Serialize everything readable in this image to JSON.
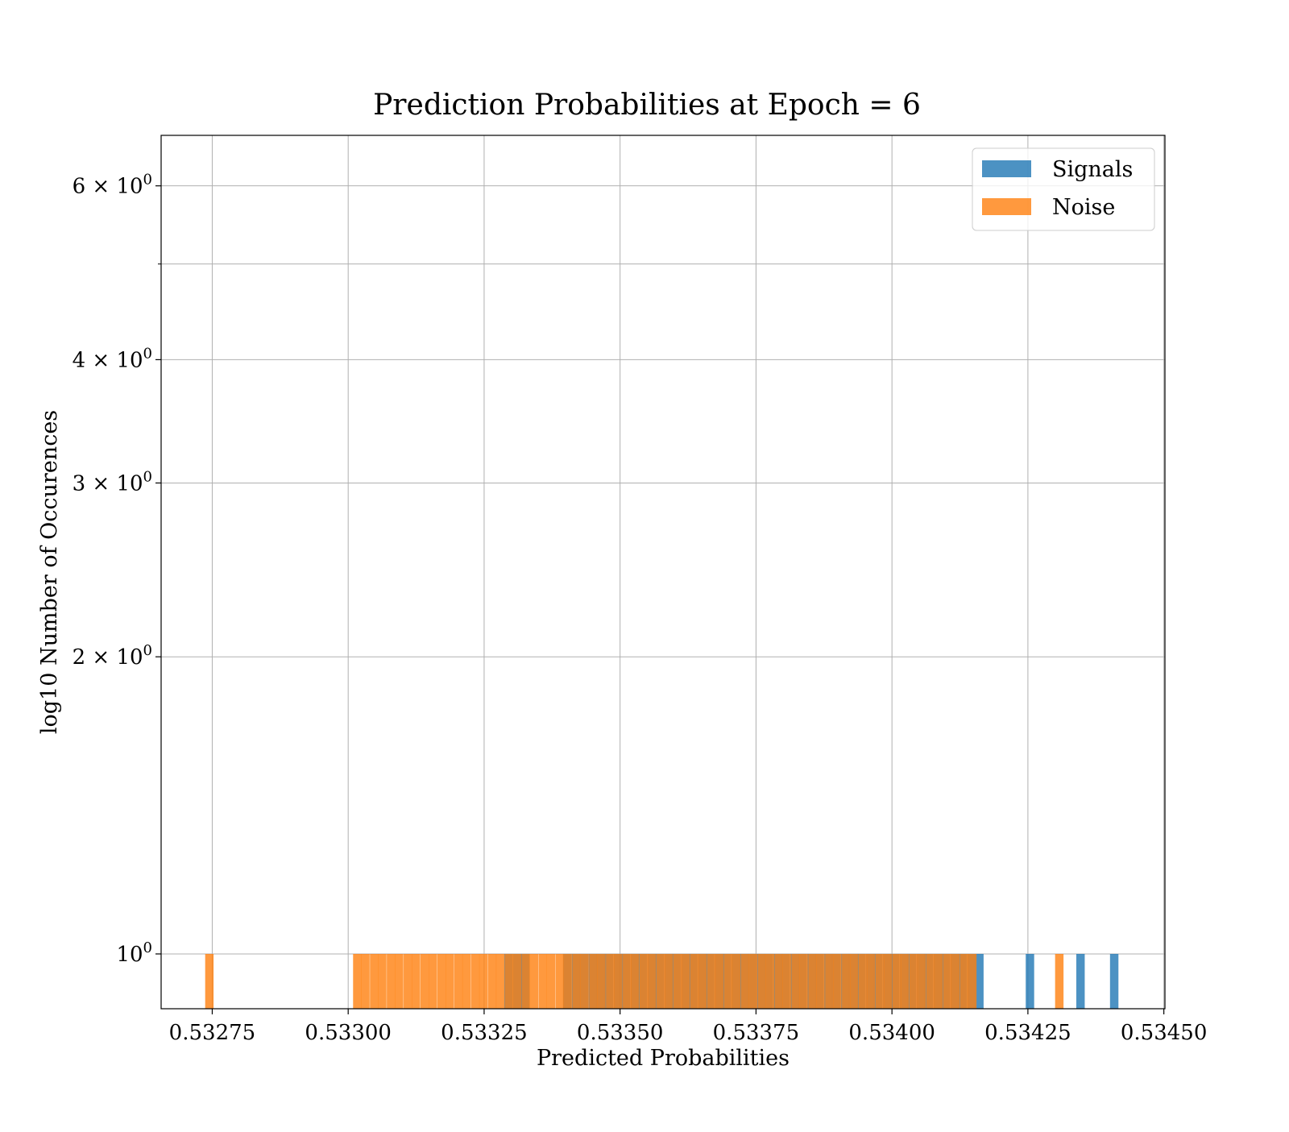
{
  "chart_data": {
    "type": "bar",
    "title": "Prediction Probabilities at Epoch = 6",
    "xlabel": "Predicted Probabilities",
    "ylabel": "log10 Number of Occurences",
    "x_scale": "linear",
    "y_scale": "log",
    "xlim": [
      0.532656,
      0.534502
    ],
    "ylim": [
      0.88,
      6.75
    ],
    "bin_width": 1.55e-05,
    "grid": true,
    "legend_position": "top-right",
    "x_ticks": [
      {
        "value": 0.53275,
        "label": "0.53275"
      },
      {
        "value": 0.533,
        "label": "0.53300"
      },
      {
        "value": 0.53325,
        "label": "0.53325"
      },
      {
        "value": 0.5335,
        "label": "0.53350"
      },
      {
        "value": 0.53375,
        "label": "0.53375"
      },
      {
        "value": 0.534,
        "label": "0.53400"
      },
      {
        "value": 0.53425,
        "label": "0.53425"
      },
      {
        "value": 0.5345,
        "label": "0.53450"
      }
    ],
    "y_ticks": [
      {
        "value": 1,
        "label": "10",
        "sup": "0"
      },
      {
        "value": 2,
        "label": "2 × 10",
        "sup": "0"
      },
      {
        "value": 3,
        "label": "3 × 10",
        "sup": "0"
      },
      {
        "value": 4,
        "label": "4 × 10",
        "sup": "0"
      },
      {
        "value": 6,
        "label": "6 × 10",
        "sup": "0"
      }
    ],
    "y_minor_ticks": [
      5
    ],
    "series": [
      {
        "name": "Signals",
        "color": "#1f77b4",
        "opacity": 0.8,
        "bins": [
          [
            0.533287,
            1
          ],
          [
            0.533303,
            1
          ],
          [
            0.533318,
            1
          ],
          [
            0.533395,
            1
          ],
          [
            0.533411,
            1
          ],
          [
            0.533426,
            1
          ],
          [
            0.533442,
            1
          ],
          [
            0.533457,
            1
          ],
          [
            0.533472,
            1
          ],
          [
            0.533488,
            1
          ],
          [
            0.533503,
            1
          ],
          [
            0.533519,
            1
          ],
          [
            0.533534,
            1
          ],
          [
            0.53355,
            1
          ],
          [
            0.533565,
            1
          ],
          [
            0.533581,
            1
          ],
          [
            0.533596,
            1
          ],
          [
            0.533612,
            1
          ],
          [
            0.533627,
            1
          ],
          [
            0.533643,
            1
          ],
          [
            0.533658,
            1
          ],
          [
            0.533674,
            1
          ],
          [
            0.533689,
            1
          ],
          [
            0.533705,
            1
          ],
          [
            0.53372,
            1
          ],
          [
            0.533735,
            1
          ],
          [
            0.533751,
            1
          ],
          [
            0.533766,
            1
          ],
          [
            0.533782,
            1
          ],
          [
            0.533797,
            1
          ],
          [
            0.533813,
            1
          ],
          [
            0.533828,
            1
          ],
          [
            0.533844,
            1
          ],
          [
            0.533859,
            1
          ],
          [
            0.533875,
            1
          ],
          [
            0.53389,
            1
          ],
          [
            0.533906,
            1
          ],
          [
            0.533921,
            1
          ],
          [
            0.533936,
            1
          ],
          [
            0.533952,
            1
          ],
          [
            0.533967,
            1
          ],
          [
            0.533983,
            1
          ],
          [
            0.533998,
            1
          ],
          [
            0.534014,
            1
          ],
          [
            0.534029,
            1
          ],
          [
            0.534045,
            1
          ],
          [
            0.53406,
            1
          ],
          [
            0.534076,
            1
          ],
          [
            0.534091,
            1
          ],
          [
            0.534107,
            1
          ],
          [
            0.534122,
            1
          ],
          [
            0.534138,
            1
          ],
          [
            0.534153,
            1
          ],
          [
            0.534246,
            1
          ],
          [
            0.534339,
            1
          ],
          [
            0.534401,
            1
          ]
        ]
      },
      {
        "name": "Noise",
        "color": "#ff7f0e",
        "opacity": 0.8,
        "bins": [
          [
            0.532737,
            1
          ],
          [
            0.533009,
            1
          ],
          [
            0.533024,
            1
          ],
          [
            0.53304,
            1
          ],
          [
            0.533055,
            1
          ],
          [
            0.533071,
            1
          ],
          [
            0.533086,
            1
          ],
          [
            0.533102,
            1
          ],
          [
            0.533117,
            1
          ],
          [
            0.533133,
            1
          ],
          [
            0.533148,
            1
          ],
          [
            0.533164,
            1
          ],
          [
            0.533179,
            1
          ],
          [
            0.533195,
            1
          ],
          [
            0.53321,
            1
          ],
          [
            0.533226,
            1
          ],
          [
            0.533241,
            1
          ],
          [
            0.533257,
            1
          ],
          [
            0.533272,
            1
          ],
          [
            0.533288,
            1
          ],
          [
            0.533303,
            1
          ],
          [
            0.533319,
            1
          ],
          [
            0.533334,
            1
          ],
          [
            0.53335,
            1
          ],
          [
            0.533365,
            1
          ],
          [
            0.533381,
            1
          ],
          [
            0.533396,
            1
          ],
          [
            0.533412,
            1
          ],
          [
            0.533427,
            1
          ],
          [
            0.533443,
            1
          ],
          [
            0.533458,
            1
          ],
          [
            0.533474,
            1
          ],
          [
            0.533489,
            1
          ],
          [
            0.533505,
            1
          ],
          [
            0.53352,
            1
          ],
          [
            0.533536,
            1
          ],
          [
            0.533551,
            1
          ],
          [
            0.533567,
            1
          ],
          [
            0.533582,
            1
          ],
          [
            0.533598,
            1
          ],
          [
            0.533613,
            1
          ],
          [
            0.533629,
            1
          ],
          [
            0.533644,
            1
          ],
          [
            0.53366,
            1
          ],
          [
            0.533675,
            1
          ],
          [
            0.533691,
            1
          ],
          [
            0.533706,
            1
          ],
          [
            0.533722,
            1
          ],
          [
            0.533737,
            1
          ],
          [
            0.533753,
            1
          ],
          [
            0.533768,
            1
          ],
          [
            0.533784,
            1
          ],
          [
            0.533799,
            1
          ],
          [
            0.533815,
            1
          ],
          [
            0.53383,
            1
          ],
          [
            0.533846,
            1
          ],
          [
            0.533861,
            1
          ],
          [
            0.533877,
            1
          ],
          [
            0.533892,
            1
          ],
          [
            0.533908,
            1
          ],
          [
            0.533923,
            1
          ],
          [
            0.533939,
            1
          ],
          [
            0.533954,
            1
          ],
          [
            0.53397,
            1
          ],
          [
            0.533985,
            1
          ],
          [
            0.534001,
            1
          ],
          [
            0.534016,
            1
          ],
          [
            0.534032,
            1
          ],
          [
            0.534047,
            1
          ],
          [
            0.534063,
            1
          ],
          [
            0.534078,
            1
          ],
          [
            0.534094,
            1
          ],
          [
            0.534109,
            1
          ],
          [
            0.534125,
            1
          ],
          [
            0.53414,
            1
          ],
          [
            0.5343,
            1
          ]
        ]
      }
    ]
  }
}
